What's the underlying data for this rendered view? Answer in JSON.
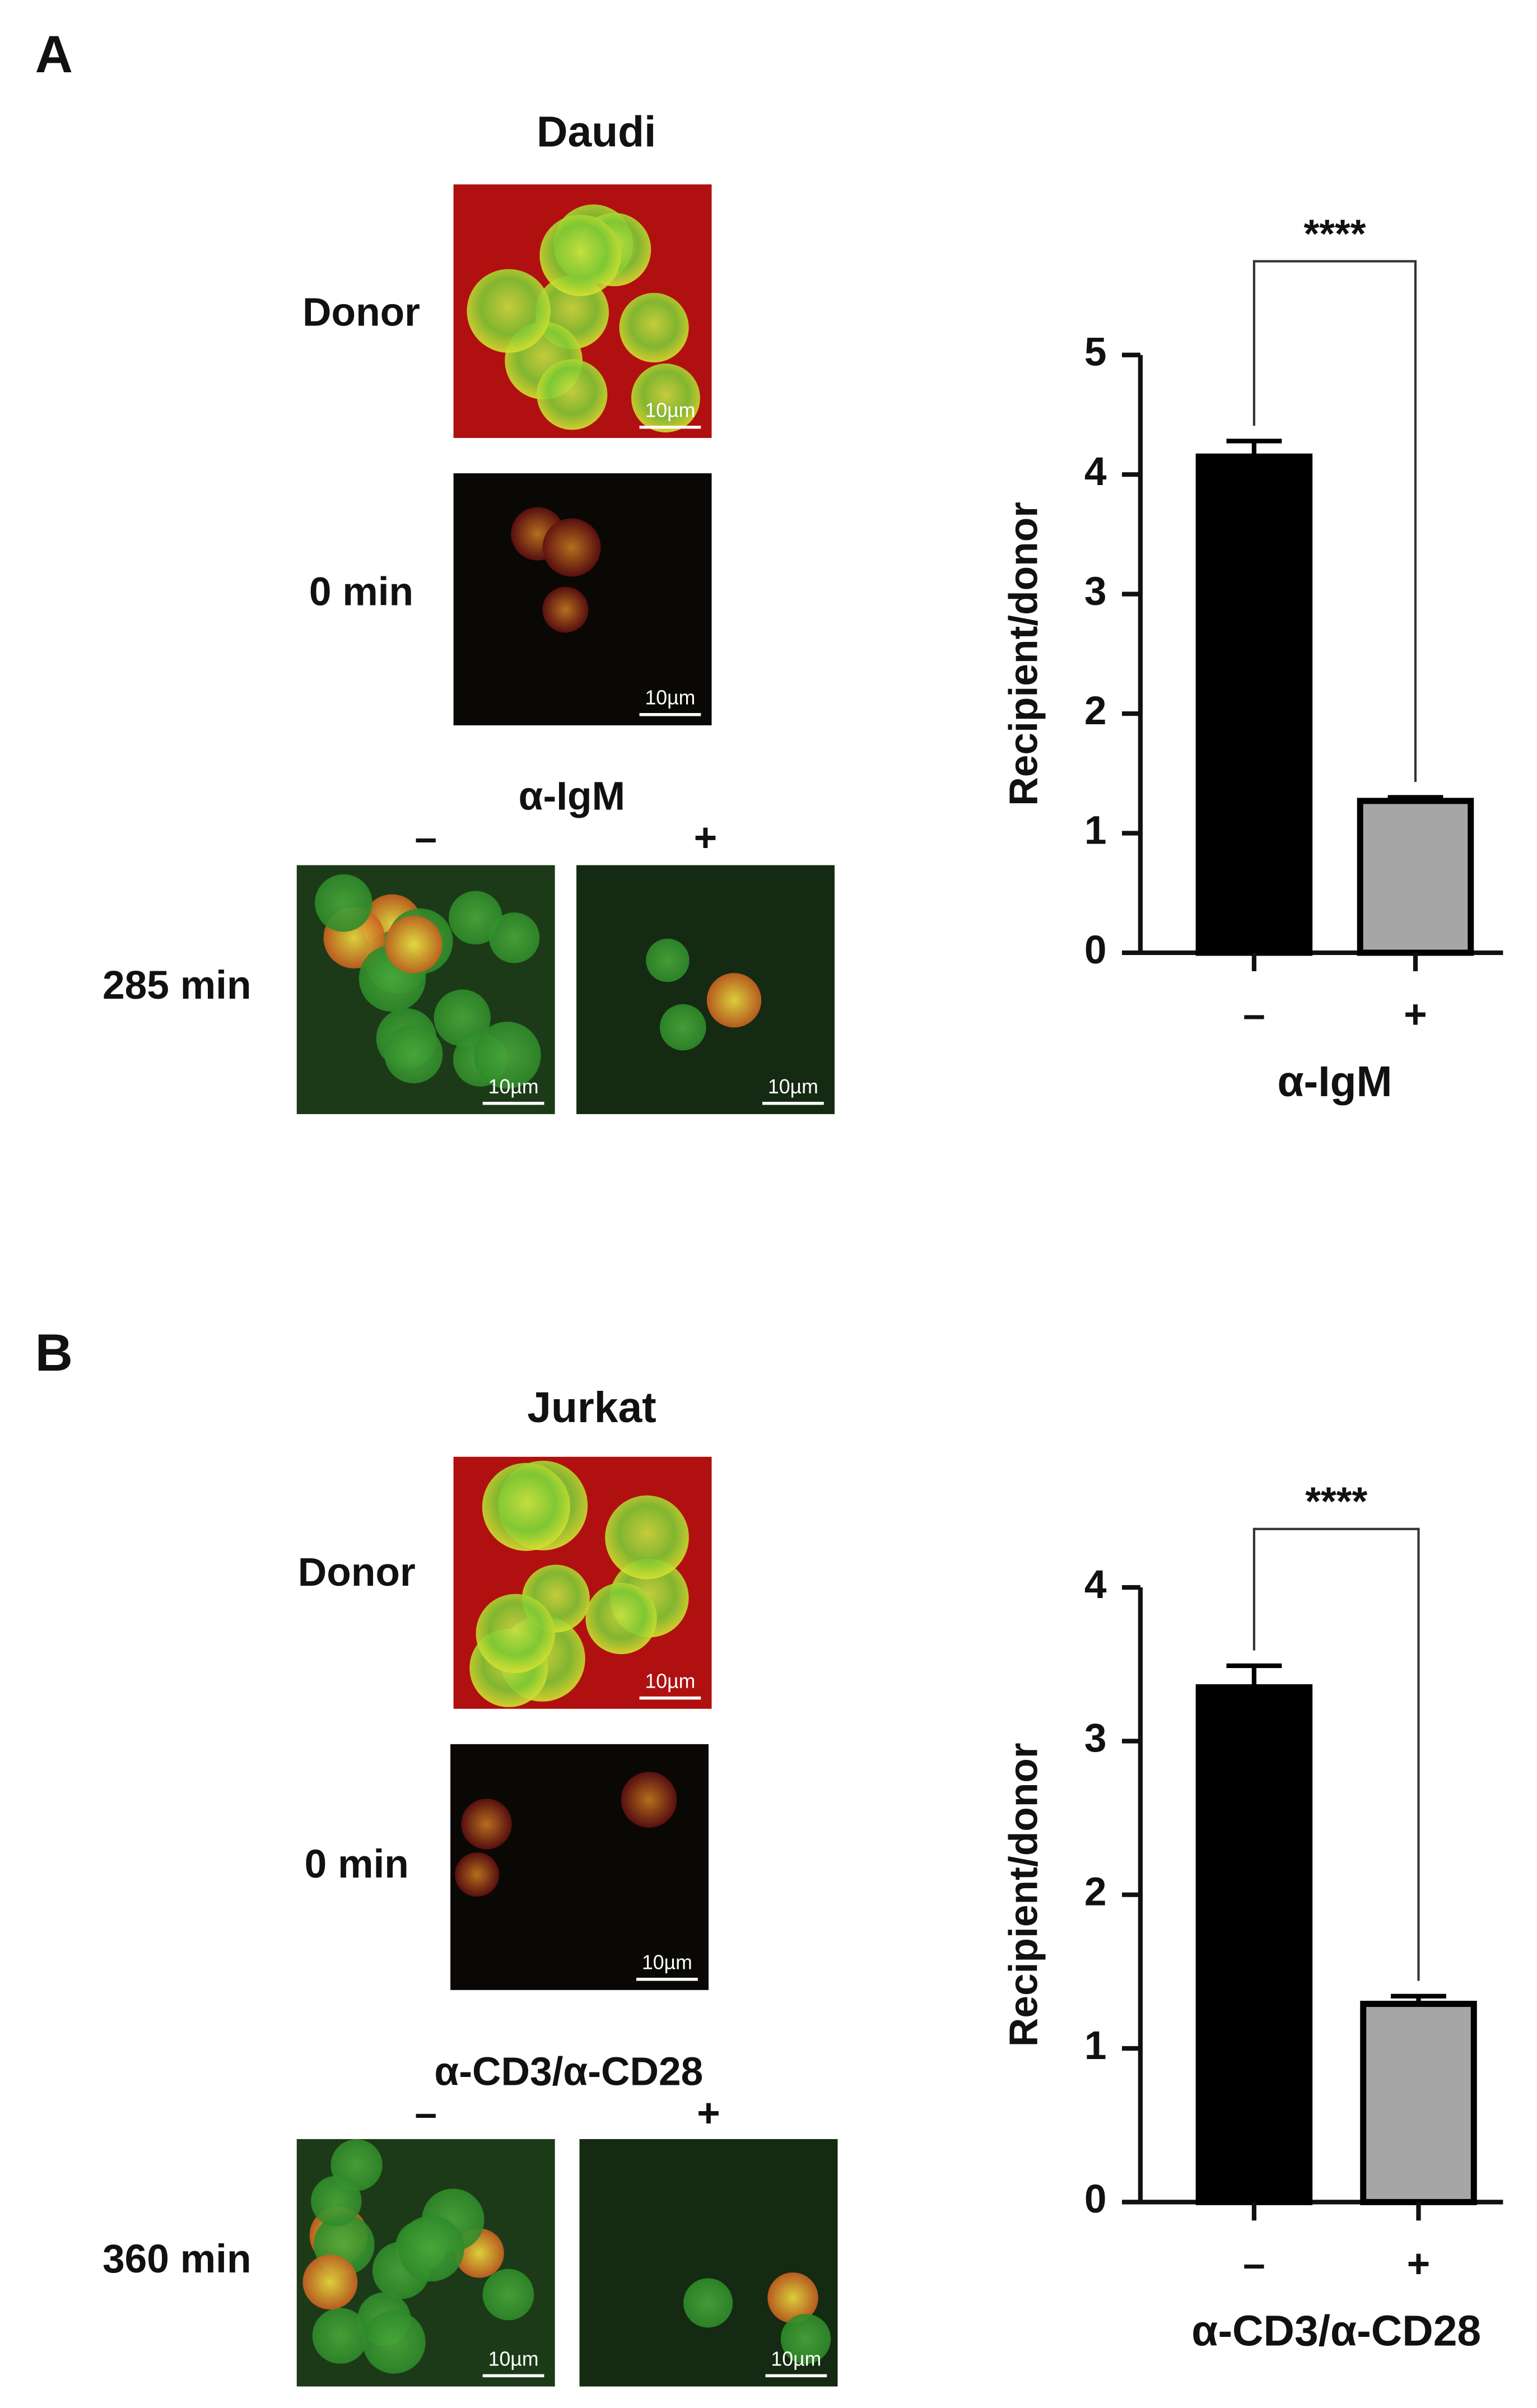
{
  "panels": [
    {
      "label": "A",
      "cell_line": "Daudi",
      "rows": [
        "Donor",
        "0 min"
      ],
      "treatment": "α-IgM",
      "conditions": [
        "–",
        "+"
      ],
      "time": "285 min",
      "scale_bars": [
        "10µm",
        "10µm",
        "10µm",
        "10µm"
      ]
    },
    {
      "label": "B",
      "cell_line": "Jurkat",
      "rows": [
        "Donor",
        "0 min"
      ],
      "treatment": "α-CD3/α-CD28",
      "conditions": [
        "–",
        "+"
      ],
      "time": "360 min",
      "scale_bars": [
        "10µm",
        "10µm",
        "10µm",
        "10µm"
      ]
    }
  ],
  "chart_data": [
    {
      "type": "bar",
      "categories": [
        "–",
        "+"
      ],
      "values": [
        4.15,
        1.27
      ],
      "errors": [
        0.13,
        0.03
      ],
      "colors": [
        "#000000",
        "#a6a6a6"
      ],
      "xlabel": "α-IgM",
      "ylabel": "Recipient/donor",
      "ylim": [
        0,
        5
      ],
      "yticks": [
        0,
        1,
        2,
        3,
        4,
        5
      ],
      "annotation": "****"
    },
    {
      "type": "bar",
      "categories": [
        "–",
        "+"
      ],
      "values": [
        3.35,
        1.29
      ],
      "errors": [
        0.14,
        0.05
      ],
      "colors": [
        "#000000",
        "#a6a6a6"
      ],
      "xlabel": "α-CD3/α-CD28",
      "ylabel": "Recipient/donor",
      "ylim": [
        0,
        4
      ],
      "yticks": [
        0,
        1,
        2,
        3,
        4
      ],
      "annotation": "****"
    }
  ]
}
